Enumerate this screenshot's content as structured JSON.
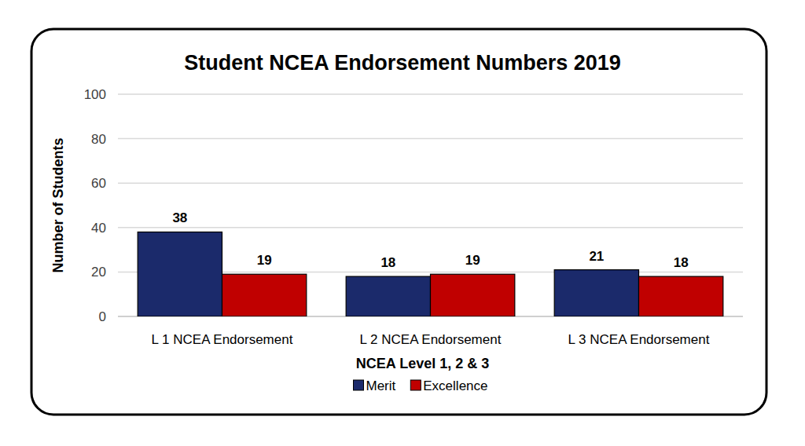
{
  "chart_data": {
    "type": "bar",
    "title": "Student NCEA Endorsement Numbers 2019",
    "x_label": "NCEA Level 1, 2 & 3",
    "y_label": "Number of Students",
    "categories": [
      "L 1 NCEA Endorsement",
      "L 2 NCEA Endorsement",
      "L 3 NCEA Endorsement"
    ],
    "series": [
      {
        "name": "Merit",
        "color": "#1b2a6b",
        "values": [
          38,
          18,
          21
        ]
      },
      {
        "name": "Excellence",
        "color": "#c00000",
        "values": [
          19,
          19,
          18
        ]
      }
    ],
    "ylim": [
      0,
      100
    ],
    "yticks": [
      0,
      20,
      40,
      60,
      80,
      100
    ],
    "grid": true,
    "data_labels": true,
    "legend": "bottom"
  }
}
